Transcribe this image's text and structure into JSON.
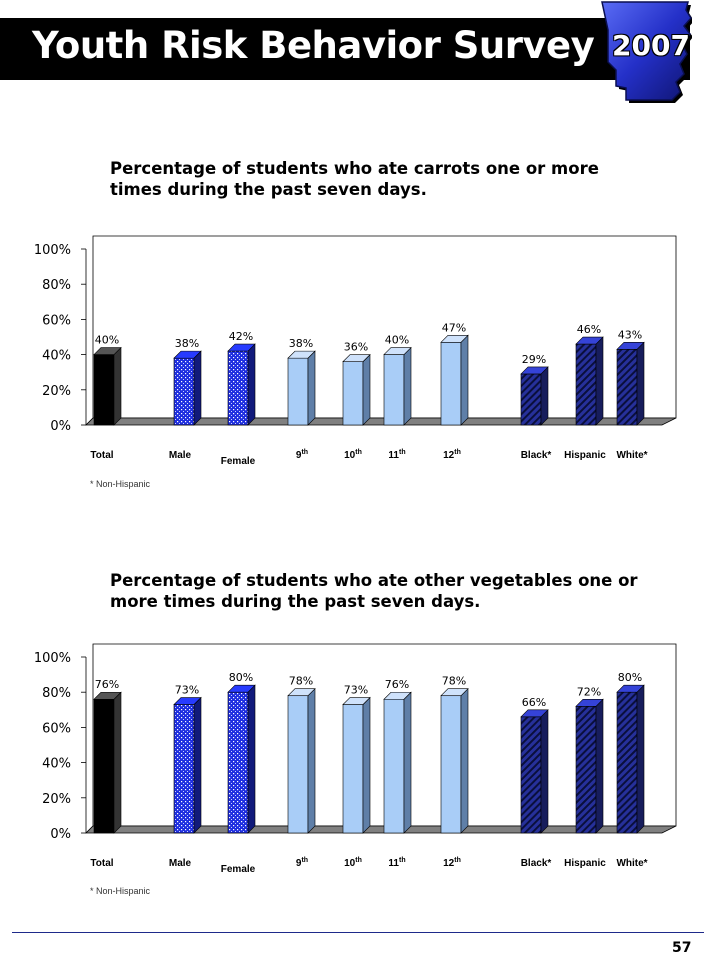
{
  "header": {
    "title": "Youth Risk Behavior Survey",
    "year": "2007"
  },
  "colors": {
    "banner": "#000000",
    "badge": "#2430c8",
    "total": "#000000",
    "sex": "#1f2fe0",
    "grade": "#a9cdf7",
    "race": "#26309a"
  },
  "chart_data": [
    {
      "type": "bar",
      "title": "Percentage of students who ate carrots one or more times during the past seven days.",
      "categories": [
        "Total",
        "Male",
        "Female",
        "9th",
        "10th",
        "11th",
        "12th",
        "Black*",
        "Hispanic",
        "White*"
      ],
      "values": [
        40,
        38,
        42,
        38,
        36,
        40,
        47,
        29,
        46,
        43
      ],
      "value_labels": [
        "40%",
        "38%",
        "42%",
        "38%",
        "36%",
        "40%",
        "47%",
        "29%",
        "46%",
        "43%"
      ],
      "groups": [
        "total",
        "sex",
        "sex",
        "grade",
        "grade",
        "grade",
        "grade",
        "race",
        "race",
        "race"
      ],
      "ylim": [
        0,
        100
      ],
      "yticks": [
        "0%",
        "20%",
        "40%",
        "60%",
        "80%",
        "100%"
      ],
      "grid": false,
      "footnote": "* Non-Hispanic"
    },
    {
      "type": "bar",
      "title": "Percentage of students who ate other vegetables one or more times during the past seven days.",
      "categories": [
        "Total",
        "Male",
        "Female",
        "9th",
        "10th",
        "11th",
        "12th",
        "Black*",
        "Hispanic",
        "White*"
      ],
      "values": [
        76,
        73,
        80,
        78,
        73,
        76,
        78,
        66,
        72,
        80
      ],
      "value_labels": [
        "76%",
        "73%",
        "80%",
        "78%",
        "73%",
        "76%",
        "78%",
        "66%",
        "72%",
        "80%"
      ],
      "groups": [
        "total",
        "sex",
        "sex",
        "grade",
        "grade",
        "grade",
        "grade",
        "race",
        "race",
        "race"
      ],
      "ylim": [
        0,
        100
      ],
      "yticks": [
        "0%",
        "20%",
        "40%",
        "60%",
        "80%",
        "100%"
      ],
      "grid": false,
      "footnote": "* Non-Hispanic"
    }
  ],
  "page_number": "57"
}
